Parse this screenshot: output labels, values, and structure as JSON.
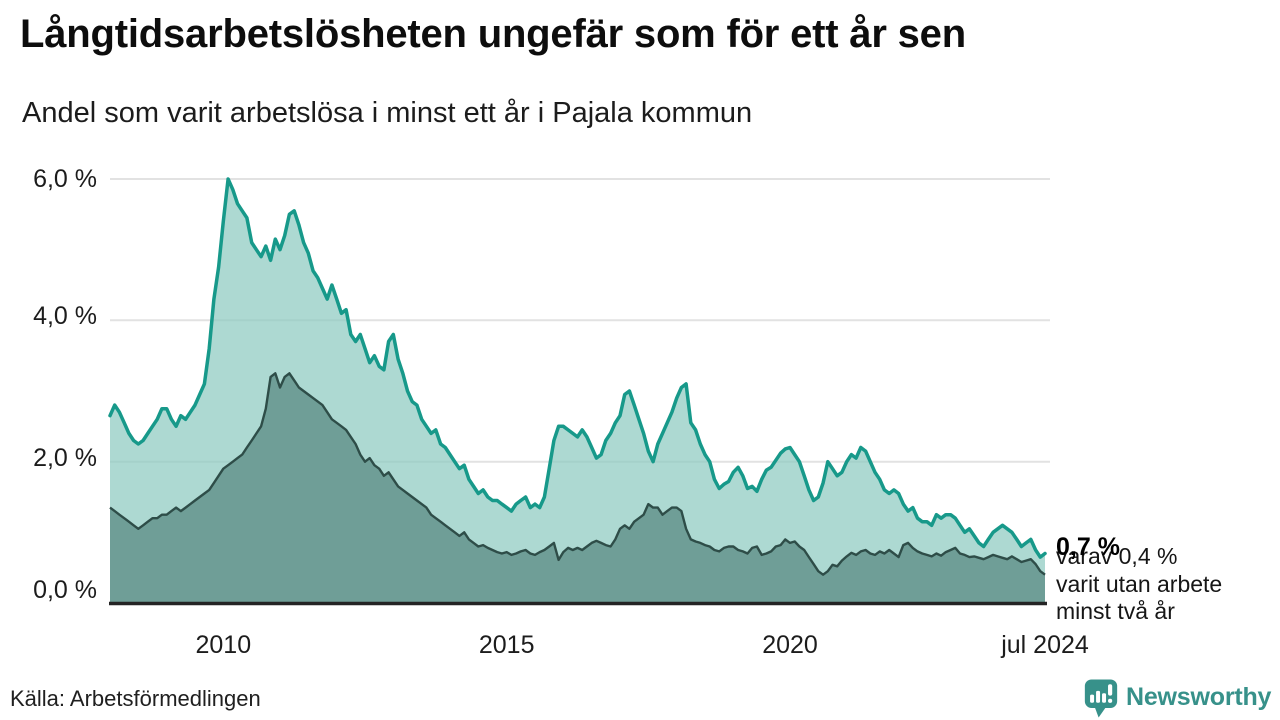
{
  "chart_data": {
    "type": "area",
    "title": "Långtidsarbetslösheten ungefär som för ett år sen",
    "subtitle": "Andel som varit arbetslösa i minst ett år i Pajala kommun",
    "unit": "%",
    "x_start": "jan 2008",
    "x_end": "jul 2024",
    "ylim": [
      0,
      6
    ],
    "grid": "horizontal",
    "grid_color": "#e2e2e2",
    "axis_color": "#242424",
    "y_tick_labels": [
      "6,0 %",
      "4,0 %",
      "2,0 %",
      "0,0 %"
    ],
    "y_tick_values": [
      6,
      4,
      2,
      0
    ],
    "x_ticks": [
      {
        "label": "2010",
        "month_index": 24
      },
      {
        "label": "2015",
        "month_index": 84
      },
      {
        "label": "2020",
        "month_index": 144
      },
      {
        "label": "jul 2024",
        "month_index": 198
      }
    ],
    "series": [
      {
        "name": "Andel som varit arbetslösa i minst ett år",
        "color": "#17998a",
        "fill": "#8ecbc1",
        "fill_opacity": 0.72,
        "stroke_width": 3.5,
        "values": [
          2.65,
          2.8,
          2.7,
          2.55,
          2.4,
          2.3,
          2.25,
          2.3,
          2.4,
          2.5,
          2.6,
          2.75,
          2.75,
          2.6,
          2.5,
          2.65,
          2.6,
          2.7,
          2.8,
          2.95,
          3.1,
          3.6,
          4.3,
          4.75,
          5.4,
          6.0,
          5.85,
          5.65,
          5.55,
          5.45,
          5.1,
          5.0,
          4.9,
          5.05,
          4.85,
          5.15,
          5.0,
          5.2,
          5.5,
          5.55,
          5.35,
          5.1,
          4.95,
          4.7,
          4.6,
          4.45,
          4.3,
          4.5,
          4.3,
          4.1,
          4.15,
          3.8,
          3.7,
          3.8,
          3.6,
          3.4,
          3.5,
          3.35,
          3.3,
          3.7,
          3.8,
          3.45,
          3.25,
          3.0,
          2.85,
          2.8,
          2.6,
          2.5,
          2.4,
          2.45,
          2.25,
          2.2,
          2.1,
          2.0,
          1.9,
          1.95,
          1.75,
          1.65,
          1.55,
          1.6,
          1.5,
          1.45,
          1.45,
          1.4,
          1.35,
          1.3,
          1.4,
          1.45,
          1.5,
          1.35,
          1.4,
          1.35,
          1.5,
          1.9,
          2.3,
          2.5,
          2.5,
          2.45,
          2.4,
          2.35,
          2.45,
          2.35,
          2.2,
          2.05,
          2.1,
          2.3,
          2.4,
          2.55,
          2.65,
          2.95,
          3.0,
          2.8,
          2.6,
          2.4,
          2.15,
          2.0,
          2.25,
          2.4,
          2.55,
          2.7,
          2.9,
          3.05,
          3.1,
          2.55,
          2.45,
          2.25,
          2.1,
          2.0,
          1.75,
          1.62,
          1.68,
          1.72,
          1.85,
          1.92,
          1.8,
          1.62,
          1.65,
          1.58,
          1.75,
          1.88,
          1.92,
          2.02,
          2.12,
          2.18,
          2.2,
          2.1,
          2.0,
          1.8,
          1.6,
          1.45,
          1.5,
          1.7,
          2.0,
          1.9,
          1.8,
          1.85,
          2.0,
          2.1,
          2.05,
          2.2,
          2.15,
          2.0,
          1.85,
          1.75,
          1.6,
          1.55,
          1.6,
          1.55,
          1.4,
          1.3,
          1.35,
          1.2,
          1.15,
          1.15,
          1.1,
          1.25,
          1.2,
          1.25,
          1.25,
          1.2,
          1.1,
          1.0,
          1.05,
          0.95,
          0.85,
          0.8,
          0.9,
          1.0,
          1.05,
          1.1,
          1.05,
          1.0,
          0.9,
          0.8,
          0.85,
          0.9,
          0.75,
          0.65,
          0.7
        ]
      },
      {
        "name": "varav utan arbete minst två år",
        "color": "#2e4d48",
        "fill": "#6f9e97",
        "fill_opacity": 1,
        "stroke_width": 2.4,
        "values": [
          1.35,
          1.3,
          1.25,
          1.2,
          1.15,
          1.1,
          1.05,
          1.1,
          1.15,
          1.2,
          1.2,
          1.25,
          1.25,
          1.3,
          1.35,
          1.3,
          1.35,
          1.4,
          1.45,
          1.5,
          1.55,
          1.6,
          1.7,
          1.8,
          1.9,
          1.95,
          2.0,
          2.05,
          2.1,
          2.2,
          2.3,
          2.4,
          2.5,
          2.75,
          3.2,
          3.25,
          3.05,
          3.2,
          3.25,
          3.15,
          3.05,
          3.0,
          2.95,
          2.9,
          2.85,
          2.8,
          2.7,
          2.6,
          2.55,
          2.5,
          2.45,
          2.35,
          2.25,
          2.1,
          2.0,
          2.05,
          1.95,
          1.9,
          1.8,
          1.85,
          1.75,
          1.65,
          1.6,
          1.55,
          1.5,
          1.45,
          1.4,
          1.35,
          1.25,
          1.2,
          1.15,
          1.1,
          1.05,
          1.0,
          0.95,
          1.0,
          0.9,
          0.85,
          0.8,
          0.82,
          0.78,
          0.75,
          0.72,
          0.7,
          0.72,
          0.68,
          0.7,
          0.73,
          0.75,
          0.7,
          0.68,
          0.72,
          0.75,
          0.8,
          0.85,
          0.61,
          0.72,
          0.78,
          0.75,
          0.78,
          0.75,
          0.8,
          0.85,
          0.88,
          0.85,
          0.82,
          0.8,
          0.9,
          1.05,
          1.1,
          1.05,
          1.15,
          1.2,
          1.25,
          1.4,
          1.35,
          1.35,
          1.25,
          1.3,
          1.35,
          1.35,
          1.3,
          1.05,
          0.9,
          0.87,
          0.85,
          0.82,
          0.8,
          0.75,
          0.73,
          0.78,
          0.8,
          0.8,
          0.75,
          0.73,
          0.7,
          0.78,
          0.8,
          0.68,
          0.7,
          0.73,
          0.8,
          0.82,
          0.9,
          0.85,
          0.87,
          0.8,
          0.75,
          0.65,
          0.55,
          0.45,
          0.4,
          0.45,
          0.54,
          0.52,
          0.6,
          0.66,
          0.71,
          0.68,
          0.73,
          0.75,
          0.7,
          0.68,
          0.73,
          0.7,
          0.75,
          0.7,
          0.65,
          0.82,
          0.85,
          0.78,
          0.73,
          0.7,
          0.68,
          0.66,
          0.7,
          0.67,
          0.72,
          0.75,
          0.78,
          0.7,
          0.68,
          0.65,
          0.66,
          0.64,
          0.62,
          0.65,
          0.68,
          0.66,
          0.64,
          0.62,
          0.66,
          0.62,
          0.58,
          0.6,
          0.62,
          0.55,
          0.45,
          0.4
        ]
      }
    ],
    "end_labels": {
      "total_label": "0,7 %",
      "note_lines": [
        "varav 0,4 %",
        "varit utan arbete",
        "minst två år"
      ]
    }
  },
  "footer": {
    "source": "Källa: Arbetsförmedlingen",
    "brand": "Newsworthy",
    "brand_color": "#37918a"
  }
}
